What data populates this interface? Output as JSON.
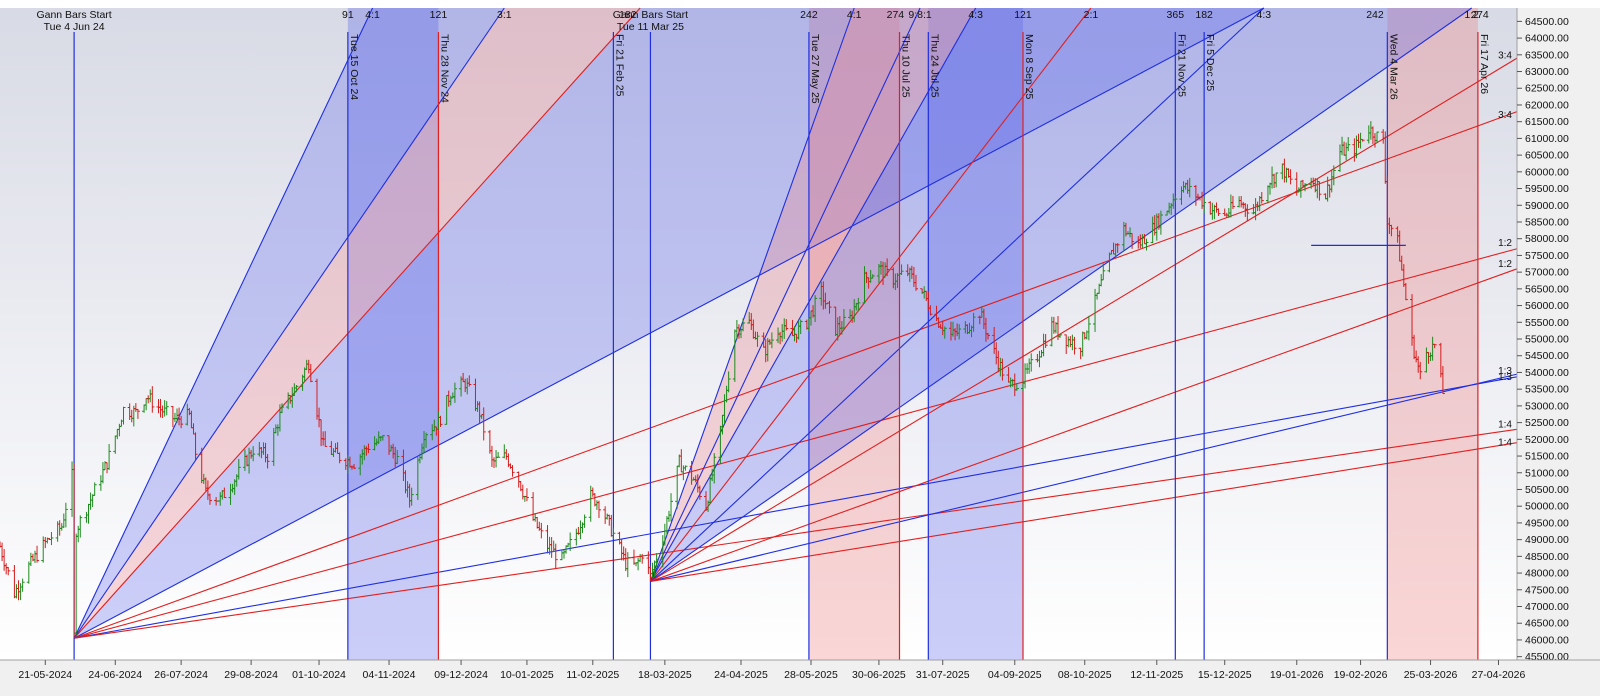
{
  "chart_data": {
    "type": "candlestick-gann",
    "ylim": [
      45400,
      64900
    ],
    "y_ticks": [
      45500,
      46000,
      46500,
      47000,
      47500,
      48000,
      48500,
      49000,
      49500,
      50000,
      50500,
      51000,
      51500,
      52000,
      52500,
      53000,
      53500,
      54000,
      54500,
      55000,
      55500,
      56000,
      56500,
      57000,
      57500,
      58000,
      58500,
      59000,
      59500,
      60000,
      60500,
      61000,
      61500,
      62000,
      62500,
      63000,
      63500,
      64000,
      64500
    ],
    "y_tick_labels": [
      "45500.00",
      "46000.00",
      "46500.00",
      "47000.00",
      "47500.00",
      "48000.00",
      "48500.00",
      "49000.00",
      "49500.00",
      "50000.00",
      "50500.00",
      "51000.00",
      "51500.00",
      "52000.00",
      "52500.00",
      "53000.00",
      "53500.00",
      "54000.00",
      "54500.00",
      "55000.00",
      "55500.00",
      "56000.00",
      "56500.00",
      "57000.00",
      "57500.00",
      "58000.00",
      "58500.00",
      "59000.00",
      "59500.00",
      "60000.00",
      "60500.00",
      "61000.00",
      "61500.00",
      "62000.00",
      "62500.00",
      "63000.00",
      "63500.00",
      "64000.00",
      "64500.00"
    ],
    "x_start": "2024-04-29",
    "x_end": "2026-05-06",
    "x_ticks": [
      {
        "date": "2024-05-21",
        "label": "21-05-2024"
      },
      {
        "date": "2024-06-24",
        "label": "24-06-2024"
      },
      {
        "date": "2024-07-26",
        "label": "26-07-2024"
      },
      {
        "date": "2024-08-29",
        "label": "29-08-2024"
      },
      {
        "date": "2024-10-01",
        "label": "01-10-2024"
      },
      {
        "date": "2024-11-04",
        "label": "04-11-2024"
      },
      {
        "date": "2024-12-09",
        "label": "09-12-2024"
      },
      {
        "date": "2025-01-10",
        "label": "10-01-2025"
      },
      {
        "date": "2025-02-11",
        "label": "11-02-2025"
      },
      {
        "date": "2025-03-18",
        "label": "18-03-2025"
      },
      {
        "date": "2025-04-24",
        "label": "24-04-2025"
      },
      {
        "date": "2025-05-28",
        "label": "28-05-2025"
      },
      {
        "date": "2025-06-30",
        "label": "30-06-2025"
      },
      {
        "date": "2025-07-31",
        "label": "31-07-2025"
      },
      {
        "date": "2025-09-04",
        "label": "04-09-2025"
      },
      {
        "date": "2025-10-08",
        "label": "08-10-2025"
      },
      {
        "date": "2025-11-12",
        "label": "12-11-2025"
      },
      {
        "date": "2025-12-15",
        "label": "15-12-2025"
      },
      {
        "date": "2026-01-19",
        "label": "19-01-2026"
      },
      {
        "date": "2026-02-19",
        "label": "19-02-2026"
      },
      {
        "date": "2026-03-25",
        "label": "25-03-2026"
      },
      {
        "date": "2026-04-27",
        "label": "27-04-2026"
      }
    ],
    "top_labels": [
      {
        "date": "2024-06-04",
        "text": "Gann Bars Start"
      },
      {
        "date": "2024-06-04",
        "text": "Tue 4 Jun 24"
      },
      {
        "date": "2025-03-11",
        "text": "Gann Bars Start"
      },
      {
        "date": "2025-03-11",
        "text": "Tue 11 Mar 25"
      }
    ],
    "top_counts": [
      {
        "date": "2024-10-15",
        "text": "91"
      },
      {
        "date": "2024-10-27",
        "text": "4:1"
      },
      {
        "date": "2024-11-28",
        "text": "121"
      },
      {
        "date": "2024-12-30",
        "text": "3:1"
      },
      {
        "date": "2025-02-28",
        "text": "182"
      },
      {
        "date": "2025-05-27",
        "text": "242"
      },
      {
        "date": "2025-06-18",
        "text": "4:1"
      },
      {
        "date": "2025-07-08",
        "text": "274"
      },
      {
        "date": "2025-07-20",
        "text": "9:8:1"
      },
      {
        "date": "2025-08-16",
        "text": "4:3"
      },
      {
        "date": "2025-09-08",
        "text": "121"
      },
      {
        "date": "2025-10-11",
        "text": "2:1"
      },
      {
        "date": "2025-11-21",
        "text": "365"
      },
      {
        "date": "2025-12-05",
        "text": "182"
      },
      {
        "date": "2026-01-03",
        "text": "4:3"
      },
      {
        "date": "2026-02-26",
        "text": "242"
      },
      {
        "date": "2026-04-14",
        "text": "1:2"
      },
      {
        "date": "2026-04-18",
        "text": "274"
      }
    ],
    "time_lines": [
      {
        "date": "2024-06-04",
        "color": "blue",
        "label": ""
      },
      {
        "date": "2024-10-15",
        "color": "blue",
        "label": "Tue 15 Oct 24"
      },
      {
        "date": "2024-11-28",
        "color": "red",
        "label": "Thu 28 Nov 24"
      },
      {
        "date": "2025-02-21",
        "color": "blue",
        "label": "Fri 21 Feb 25"
      },
      {
        "date": "2025-03-11",
        "color": "blue",
        "label": ""
      },
      {
        "date": "2025-05-27",
        "color": "blue",
        "label": "Tue 27 May 25"
      },
      {
        "date": "2025-07-10",
        "color": "red",
        "label": "Thu 10 Jul 25"
      },
      {
        "date": "2025-07-24",
        "color": "blue",
        "label": "Thu 24 Jul 25"
      },
      {
        "date": "2025-09-08",
        "color": "red",
        "label": "Mon 8 Sep 25"
      },
      {
        "date": "2025-11-21",
        "color": "blue",
        "label": "Fri 21 Nov 25"
      },
      {
        "date": "2025-12-05",
        "color": "blue",
        "label": "Fri 5 Dec 25"
      },
      {
        "date": "2026-03-04",
        "color": "blue",
        "label": "Wed 4 Mar 26"
      },
      {
        "date": "2026-04-17",
        "color": "red",
        "label": "Fri 17 Apr 26"
      }
    ],
    "shaded_zones": [
      {
        "from": "2024-10-15",
        "to": "2024-11-28",
        "color": "blue"
      },
      {
        "from": "2025-05-27",
        "to": "2025-07-10",
        "color": "red"
      },
      {
        "from": "2025-07-24",
        "to": "2025-09-08",
        "color": "blue"
      },
      {
        "from": "2026-03-04",
        "to": "2026-04-17",
        "color": "red"
      }
    ],
    "fan_origins": [
      {
        "date": "2024-06-04",
        "price": 46050
      },
      {
        "date": "2025-03-11",
        "price": 47750
      }
    ],
    "fan_lines": [
      {
        "origin": 0,
        "to_date": "2024-10-27",
        "to_price": 64900,
        "color": "blue"
      },
      {
        "origin": 0,
        "to_date": "2024-12-30",
        "to_price": 64900,
        "color": "blue"
      },
      {
        "origin": 0,
        "to_date": "2025-03-06",
        "to_price": 64900,
        "color": "red"
      },
      {
        "origin": 0,
        "to_date": "2026-01-03",
        "to_price": 64900,
        "color": "blue"
      },
      {
        "origin": 0,
        "to_date": "2026-05-06",
        "to_price": 61800,
        "color": "red"
      },
      {
        "origin": 0,
        "to_date": "2026-05-06",
        "to_price": 57700,
        "color": "red"
      },
      {
        "origin": 0,
        "to_date": "2026-05-06",
        "to_price": 53870,
        "color": "blue"
      },
      {
        "origin": 0,
        "to_date": "2026-05-06",
        "to_price": 52300,
        "color": "red"
      },
      {
        "origin": 1,
        "to_date": "2025-06-18",
        "to_price": 64900,
        "color": "blue"
      },
      {
        "origin": 1,
        "to_date": "2025-07-20",
        "to_price": 64900,
        "color": "blue"
      },
      {
        "origin": 1,
        "to_date": "2025-08-16",
        "to_price": 64900,
        "color": "blue"
      },
      {
        "origin": 1,
        "to_date": "2025-10-11",
        "to_price": 64900,
        "color": "red"
      },
      {
        "origin": 1,
        "to_date": "2026-01-03",
        "to_price": 64900,
        "color": "blue"
      },
      {
        "origin": 1,
        "to_date": "2026-04-14",
        "to_price": 64900,
        "color": "blue"
      },
      {
        "origin": 1,
        "to_date": "2026-05-06",
        "to_price": 63400,
        "color": "red"
      },
      {
        "origin": 1,
        "to_date": "2026-05-06",
        "to_price": 57100,
        "color": "red"
      },
      {
        "origin": 1,
        "to_date": "2026-05-06",
        "to_price": 53950,
        "color": "blue"
      },
      {
        "origin": 1,
        "to_date": "2026-05-06",
        "to_price": 51900,
        "color": "red"
      }
    ],
    "fan_fills": [
      {
        "origin": 0,
        "a": 0,
        "b": 1,
        "color": "blue"
      },
      {
        "origin": 0,
        "a": 1,
        "b": 2,
        "color": "red"
      },
      {
        "origin": 0,
        "a": 2,
        "b": 3,
        "color": "blue"
      },
      {
        "origin": 1,
        "a": 8,
        "b": 10,
        "color": "red"
      },
      {
        "origin": 1,
        "a": 10,
        "b": 12,
        "color": "blue"
      },
      {
        "origin": 1,
        "a": 12,
        "b": 13,
        "color": "blue"
      }
    ],
    "ratio_labels": [
      {
        "price": 63480,
        "text": "3:4"
      },
      {
        "price": 61700,
        "text": "3:4"
      },
      {
        "price": 57870,
        "text": "1:2"
      },
      {
        "price": 57250,
        "text": "1:2"
      },
      {
        "price": 54050,
        "text": "1:3"
      },
      {
        "price": 53870,
        "text": "1:3"
      },
      {
        "price": 52450,
        "text": "1:4"
      },
      {
        "price": 51900,
        "text": "1:4"
      }
    ],
    "hline": {
      "from": "2026-01-26",
      "to": "2026-03-13",
      "price": 57800
    },
    "price_path": [
      [
        "2024-04-29",
        48800
      ],
      [
        "2024-05-06",
        47400
      ],
      [
        "2024-05-13",
        48200
      ],
      [
        "2024-05-21",
        48900
      ],
      [
        "2024-05-29",
        49400
      ],
      [
        "2024-06-03",
        50900
      ],
      [
        "2024-06-04",
        46100
      ],
      [
        "2024-06-05",
        49300
      ],
      [
        "2024-06-12",
        50200
      ],
      [
        "2024-06-20",
        51300
      ],
      [
        "2024-06-28",
        52900
      ],
      [
        "2024-07-04",
        52800
      ],
      [
        "2024-07-09",
        53300
      ],
      [
        "2024-07-16",
        52900
      ],
      [
        "2024-07-23",
        52600
      ],
      [
        "2024-07-30",
        52700
      ],
      [
        "2024-08-02",
        51600
      ],
      [
        "2024-08-07",
        50400
      ],
      [
        "2024-08-14",
        50200
      ],
      [
        "2024-08-22",
        50900
      ],
      [
        "2024-08-30",
        51700
      ],
      [
        "2024-09-06",
        51500
      ],
      [
        "2024-09-12",
        52700
      ],
      [
        "2024-09-20",
        53600
      ],
      [
        "2024-09-26",
        54300
      ],
      [
        "2024-10-03",
        51800
      ],
      [
        "2024-10-10",
        51500
      ],
      [
        "2024-10-18",
        51300
      ],
      [
        "2024-10-25",
        51800
      ],
      [
        "2024-11-01",
        52000
      ],
      [
        "2024-11-08",
        51400
      ],
      [
        "2024-11-14",
        50200
      ],
      [
        "2024-11-21",
        52200
      ],
      [
        "2024-11-28",
        52500
      ],
      [
        "2024-12-04",
        53400
      ],
      [
        "2024-12-11",
        53700
      ],
      [
        "2024-12-18",
        52800
      ],
      [
        "2024-12-24",
        51300
      ],
      [
        "2024-12-31",
        51500
      ],
      [
        "2025-01-06",
        50800
      ],
      [
        "2025-01-13",
        49600
      ],
      [
        "2025-01-20",
        48800
      ],
      [
        "2025-01-27",
        48400
      ],
      [
        "2025-02-03",
        49200
      ],
      [
        "2025-02-10",
        50300
      ],
      [
        "2025-02-14",
        50100
      ],
      [
        "2025-02-20",
        49300
      ],
      [
        "2025-02-27",
        48300
      ],
      [
        "2025-03-04",
        48200
      ],
      [
        "2025-03-07",
        48600
      ],
      [
        "2025-03-11",
        47900
      ],
      [
        "2025-03-18",
        49300
      ],
      [
        "2025-03-25",
        51300
      ],
      [
        "2025-04-01",
        50800
      ],
      [
        "2025-04-07",
        50000
      ],
      [
        "2025-04-14",
        52200
      ],
      [
        "2025-04-21",
        55300
      ],
      [
        "2025-04-28",
        55500
      ],
      [
        "2025-05-05",
        54600
      ],
      [
        "2025-05-12",
        55300
      ],
      [
        "2025-05-19",
        55100
      ],
      [
        "2025-05-26",
        55500
      ],
      [
        "2025-06-02",
        56400
      ],
      [
        "2025-06-09",
        55300
      ],
      [
        "2025-06-16",
        55600
      ],
      [
        "2025-06-23",
        56800
      ],
      [
        "2025-06-30",
        57100
      ],
      [
        "2025-07-07",
        56800
      ],
      [
        "2025-07-14",
        57000
      ],
      [
        "2025-07-21",
        56400
      ],
      [
        "2025-07-28",
        55600
      ],
      [
        "2025-08-04",
        55100
      ],
      [
        "2025-08-11",
        55300
      ],
      [
        "2025-08-18",
        55800
      ],
      [
        "2025-08-25",
        54600
      ],
      [
        "2025-09-01",
        53600
      ],
      [
        "2025-09-08",
        53800
      ],
      [
        "2025-09-15",
        54500
      ],
      [
        "2025-09-22",
        55400
      ],
      [
        "2025-09-29",
        55000
      ],
      [
        "2025-10-06",
        54800
      ],
      [
        "2025-10-13",
        56100
      ],
      [
        "2025-10-20",
        57400
      ],
      [
        "2025-10-27",
        58300
      ],
      [
        "2025-11-03",
        57800
      ],
      [
        "2025-11-10",
        58300
      ],
      [
        "2025-11-17",
        58900
      ],
      [
        "2025-11-24",
        59600
      ],
      [
        "2025-12-01",
        59300
      ],
      [
        "2025-12-08",
        58900
      ],
      [
        "2025-12-15",
        58700
      ],
      [
        "2025-12-22",
        59100
      ],
      [
        "2025-12-29",
        58800
      ],
      [
        "2026-01-05",
        59700
      ],
      [
        "2026-01-12",
        60100
      ],
      [
        "2026-01-19",
        59400
      ],
      [
        "2026-01-26",
        59800
      ],
      [
        "2026-02-02",
        59300
      ],
      [
        "2026-02-09",
        60600
      ],
      [
        "2026-02-16",
        60700
      ],
      [
        "2026-02-23",
        61300
      ],
      [
        "2026-03-02",
        60900
      ],
      [
        "2026-03-04",
        58600
      ],
      [
        "2026-03-09",
        57900
      ],
      [
        "2026-03-13",
        56200
      ],
      [
        "2026-03-16",
        54900
      ],
      [
        "2026-03-20",
        53900
      ],
      [
        "2026-03-23",
        54600
      ],
      [
        "2026-03-27",
        54800
      ],
      [
        "2026-03-31",
        53400
      ]
    ]
  }
}
